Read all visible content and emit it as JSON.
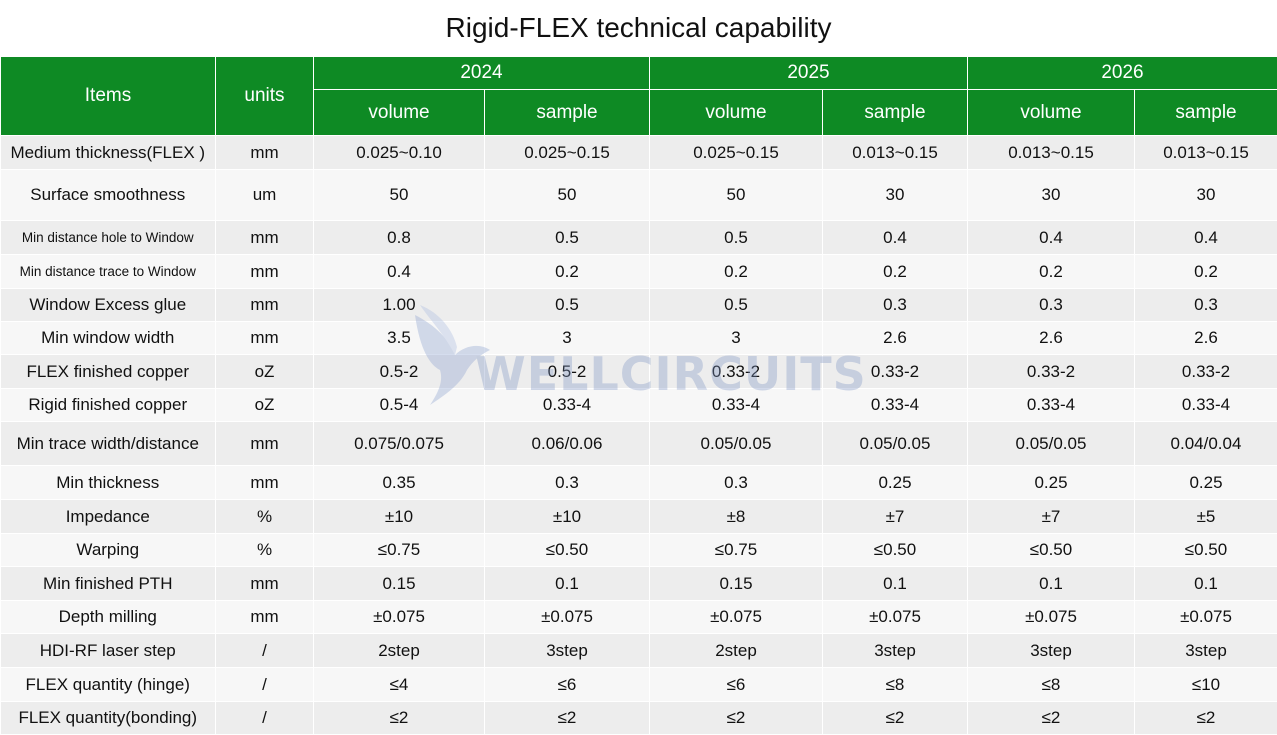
{
  "title": "Rigid-FLEX technical capability",
  "header": {
    "items": "Items",
    "units": "units",
    "years": [
      "2024",
      "2025",
      "2026"
    ],
    "sub": [
      "volume",
      "sample",
      "volume",
      "sample",
      "volume",
      "sample"
    ]
  },
  "rows": [
    {
      "item": "Medium thickness(FLEX )",
      "unit": "mm",
      "values": [
        "0.025~0.10",
        "0.025~0.15",
        "0.025~0.15",
        "0.013~0.15",
        "0.013~0.15",
        "0.013~0.15"
      ]
    },
    {
      "item": "Surface smoothness",
      "unit": "um",
      "values": [
        "50",
        "50",
        "50",
        "30",
        "30",
        "30"
      ]
    },
    {
      "item": "Min distance hole to Window",
      "unit": "mm",
      "values": [
        "0.8",
        "0.5",
        "0.5",
        "0.4",
        "0.4",
        "0.4"
      ]
    },
    {
      "item": "Min distance trace to Window",
      "unit": "mm",
      "values": [
        "0.4",
        "0.2",
        "0.2",
        "0.2",
        "0.2",
        "0.2"
      ]
    },
    {
      "item": "Window Excess glue",
      "unit": "mm",
      "values": [
        "1.00",
        "0.5",
        "0.5",
        "0.3",
        "0.3",
        "0.3"
      ]
    },
    {
      "item": "Min window width",
      "unit": "mm",
      "values": [
        "3.5",
        "3",
        "3",
        "2.6",
        "2.6",
        "2.6"
      ]
    },
    {
      "item": "FLEX finished copper",
      "unit": "oZ",
      "values": [
        "0.5-2",
        "0.5-2",
        "0.33-2",
        "0.33-2",
        "0.33-2",
        "0.33-2"
      ]
    },
    {
      "item": "Rigid finished copper",
      "unit": "oZ",
      "values": [
        "0.5-4",
        "0.33-4",
        "0.33-4",
        "0.33-4",
        "0.33-4",
        "0.33-4"
      ]
    },
    {
      "item": "Min trace width/distance",
      "unit": "mm",
      "values": [
        "0.075/0.075",
        "0.06/0.06",
        "0.05/0.05",
        "0.05/0.05",
        "0.05/0.05",
        "0.04/0.04"
      ]
    },
    {
      "item": "Min thickness",
      "unit": "mm",
      "values": [
        "0.35",
        "0.3",
        "0.3",
        "0.25",
        "0.25",
        "0.25"
      ]
    },
    {
      "item": "Impedance",
      "unit": "%",
      "values": [
        "±10",
        "±10",
        "±8",
        "±7",
        "±7",
        "±5"
      ]
    },
    {
      "item": "Warping",
      "unit": "%",
      "values": [
        "≤0.75",
        "≤0.50",
        "≤0.75",
        "≤0.50",
        "≤0.50",
        "≤0.50"
      ]
    },
    {
      "item": "Min finished PTH",
      "unit": "mm",
      "values": [
        "0.15",
        "0.1",
        "0.15",
        "0.1",
        "0.1",
        "0.1"
      ]
    },
    {
      "item": "Depth milling",
      "unit": "mm",
      "values": [
        "±0.075",
        "±0.075",
        "±0.075",
        "±0.075",
        "±0.075",
        "±0.075"
      ]
    },
    {
      "item": "HDI-RF laser step",
      "unit": "/",
      "values": [
        "2step",
        "3step",
        "2step",
        "3step",
        "3step",
        "3step"
      ]
    },
    {
      "item": "FLEX quantity (hinge)",
      "unit": "/",
      "values": [
        "≤4",
        "≤6",
        "≤6",
        "≤8",
        "≤8",
        "≤10"
      ]
    },
    {
      "item": "FLEX quantity(bonding)",
      "unit": "/",
      "values": [
        "≤2",
        "≤2",
        "≤2",
        "≤2",
        "≤2",
        "≤2"
      ]
    }
  ],
  "watermark": {
    "text": "WELLCIRCUITS",
    "logo": "dove-icon"
  }
}
